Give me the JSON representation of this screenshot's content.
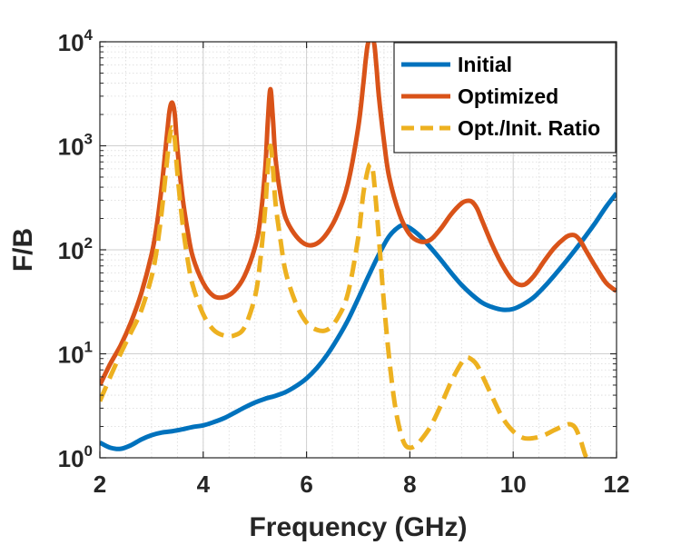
{
  "chart_data": {
    "type": "line",
    "title": "",
    "xlabel": "Frequency (GHz)",
    "ylabel": "F/B",
    "xlim": [
      2,
      12
    ],
    "ylim": [
      1,
      10000
    ],
    "yscale": "log",
    "xticks": [
      2,
      4,
      6,
      8,
      10,
      12
    ],
    "yticks": [
      {
        "value": 1,
        "base": "10",
        "exp": "0"
      },
      {
        "value": 10,
        "base": "10",
        "exp": "1"
      },
      {
        "value": 100,
        "base": "10",
        "exp": "2"
      },
      {
        "value": 1000,
        "base": "10",
        "exp": "3"
      },
      {
        "value": 10000,
        "base": "10",
        "exp": "4"
      }
    ],
    "grid": true,
    "legend_position": "top-right",
    "series": [
      {
        "name": "Initial",
        "color": "#0072BD",
        "dash": "solid",
        "x": [
          2.0,
          2.2,
          2.4,
          2.6,
          2.8,
          3.0,
          3.2,
          3.4,
          3.6,
          3.8,
          4.0,
          4.2,
          4.4,
          4.6,
          4.8,
          5.0,
          5.2,
          5.4,
          5.6,
          5.8,
          6.0,
          6.2,
          6.4,
          6.6,
          6.8,
          7.0,
          7.2,
          7.4,
          7.6,
          7.8,
          7.9,
          8.0,
          8.2,
          8.4,
          8.6,
          8.8,
          9.0,
          9.2,
          9.4,
          9.6,
          9.8,
          10.0,
          10.2,
          10.4,
          10.6,
          10.8,
          11.0,
          11.2,
          11.4,
          11.6,
          11.8,
          12.0
        ],
        "y": [
          1.4,
          1.25,
          1.22,
          1.32,
          1.5,
          1.65,
          1.75,
          1.8,
          1.88,
          1.98,
          2.05,
          2.2,
          2.4,
          2.7,
          3.05,
          3.4,
          3.7,
          3.95,
          4.3,
          4.9,
          5.8,
          7.3,
          9.8,
          14,
          21,
          34,
          56,
          90,
          135,
          168,
          170,
          162,
          135,
          105,
          80,
          60,
          46,
          37,
          31,
          28,
          26.5,
          27,
          30,
          35,
          44,
          57,
          75,
          100,
          135,
          185,
          260,
          350
        ]
      },
      {
        "name": "Optimized",
        "color": "#D95319",
        "dash": "solid",
        "x": [
          2.0,
          2.2,
          2.4,
          2.6,
          2.8,
          3.0,
          3.1,
          3.2,
          3.3,
          3.35,
          3.4,
          3.45,
          3.5,
          3.6,
          3.7,
          3.8,
          4.0,
          4.2,
          4.4,
          4.6,
          4.8,
          5.0,
          5.1,
          5.2,
          5.25,
          5.3,
          5.35,
          5.4,
          5.5,
          5.6,
          5.8,
          6.0,
          6.2,
          6.4,
          6.6,
          6.8,
          7.0,
          7.1,
          7.15,
          7.2,
          7.3,
          7.35,
          7.4,
          7.5,
          7.6,
          7.8,
          8.0,
          8.2,
          8.4,
          8.6,
          8.8,
          9.0,
          9.1,
          9.2,
          9.3,
          9.4,
          9.6,
          9.8,
          10.0,
          10.2,
          10.4,
          10.6,
          10.8,
          11.0,
          11.1,
          11.2,
          11.3,
          11.4,
          11.6,
          11.8,
          12.0
        ],
        "y": [
          5,
          8,
          12,
          20,
          38,
          90,
          170,
          420,
          1300,
          2200,
          2600,
          2000,
          950,
          320,
          150,
          85,
          48,
          36,
          35,
          40,
          56,
          105,
          190,
          600,
          1700,
          3500,
          1800,
          750,
          330,
          200,
          135,
          112,
          115,
          145,
          220,
          430,
          1500,
          4000,
          7000,
          10000,
          10000,
          6000,
          3000,
          1100,
          500,
          220,
          140,
          120,
          125,
          160,
          220,
          280,
          295,
          290,
          250,
          190,
          110,
          70,
          50,
          46,
          56,
          78,
          105,
          130,
          138,
          137,
          122,
          100,
          68,
          48,
          40
        ]
      },
      {
        "name": "Opt./Init. Ratio",
        "color": "#EDB120",
        "dash": "dashed",
        "x": [
          2.0,
          2.2,
          2.4,
          2.6,
          2.8,
          3.0,
          3.1,
          3.2,
          3.3,
          3.35,
          3.4,
          3.45,
          3.5,
          3.6,
          3.7,
          3.8,
          4.0,
          4.2,
          4.4,
          4.6,
          4.8,
          5.0,
          5.1,
          5.2,
          5.25,
          5.3,
          5.35,
          5.4,
          5.5,
          5.6,
          5.8,
          6.0,
          6.2,
          6.4,
          6.6,
          6.8,
          7.0,
          7.1,
          7.2,
          7.25,
          7.3,
          7.4,
          7.5,
          7.6,
          7.7,
          7.8,
          7.9,
          8.0,
          8.1,
          8.2,
          8.4,
          8.6,
          8.8,
          9.0,
          9.1,
          9.2,
          9.3,
          9.4,
          9.6,
          9.8,
          10.0,
          10.2,
          10.4,
          10.6,
          10.8,
          11.0,
          11.1,
          11.2,
          11.3,
          11.35,
          11.4,
          11.45
        ],
        "y": [
          3.5,
          6,
          10,
          16,
          26,
          55,
          100,
          240,
          720,
          1200,
          1500,
          1150,
          550,
          180,
          80,
          45,
          24,
          17,
          15,
          15,
          18,
          35,
          75,
          250,
          600,
          1000,
          600,
          280,
          120,
          60,
          30,
          20,
          17,
          17,
          22,
          38,
          130,
          350,
          620,
          650,
          500,
          130,
          30,
          9,
          3.5,
          1.9,
          1.35,
          1.25,
          1.3,
          1.45,
          2.0,
          3.2,
          5.4,
          8.2,
          9.2,
          8.8,
          7.8,
          6.2,
          3.8,
          2.4,
          1.8,
          1.55,
          1.55,
          1.65,
          1.85,
          2.05,
          2.1,
          1.95,
          1.5,
          1.25,
          1.05,
          1.0
        ]
      }
    ]
  }
}
